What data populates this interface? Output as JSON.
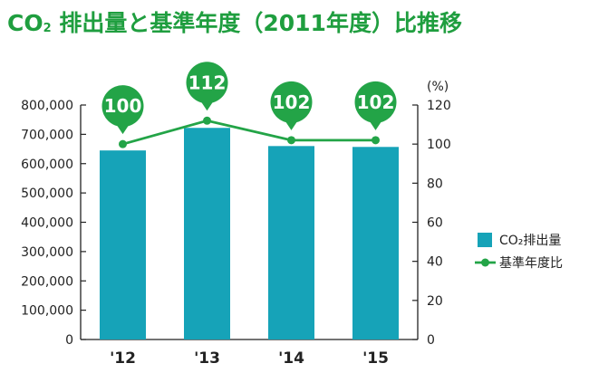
{
  "title": {
    "main": "CO",
    "sub": "2",
    "rest": " 排出量と基準年度（2011年度）比推移"
  },
  "chart_data": {
    "type": "bar",
    "categories": [
      "'12",
      "'13",
      "'14",
      "'15"
    ],
    "series": [
      {
        "name": "CO₂排出量",
        "kind": "bar",
        "axis": "left",
        "values": [
          645000,
          722000,
          660000,
          657000
        ]
      },
      {
        "name": "基準年度比",
        "kind": "line",
        "axis": "right",
        "values": [
          100,
          112,
          102,
          102
        ]
      }
    ],
    "data_labels": [
      "100",
      "112",
      "102",
      "102"
    ],
    "y_left": {
      "min": 0,
      "max": 800000,
      "ticks": [
        "0",
        "100,000",
        "200,000",
        "300,000",
        "400,000",
        "500,000",
        "600,000",
        "700,000",
        "800,000"
      ]
    },
    "y_right": {
      "min": 0,
      "max": 120,
      "unit": "(%)",
      "ticks": [
        "0",
        "20",
        "40",
        "60",
        "80",
        "100",
        "120"
      ]
    },
    "legend": {
      "position": "right",
      "items": [
        "CO₂排出量",
        "基準年度比"
      ]
    },
    "grid": false,
    "colors": {
      "bar": "#16a3b8",
      "line": "#23a447",
      "title": "#1f9e3f"
    }
  }
}
